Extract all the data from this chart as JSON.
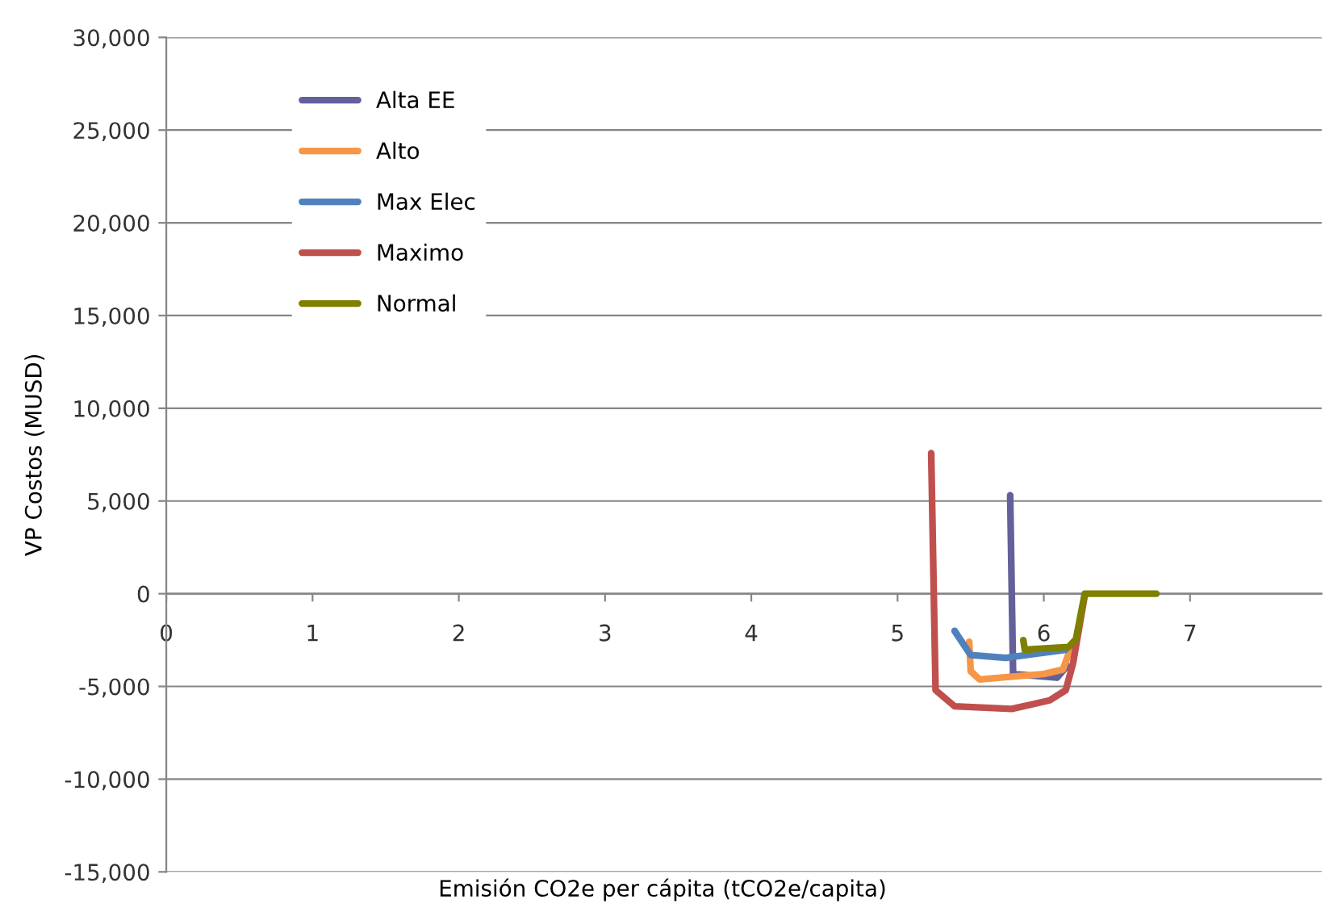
{
  "chart_data": {
    "type": "line",
    "xlabel": "Emisión CO2e per cápita (tCO2e/capita)",
    "ylabel": "VP Costos (MUSD)",
    "xlim": [
      0,
      7.9
    ],
    "xticks": [
      0,
      1,
      2,
      3,
      4,
      5,
      6,
      7
    ],
    "ylim": [
      -15000,
      30000
    ],
    "yticks": [
      {
        "value": -15000,
        "label": "-15,000"
      },
      {
        "value": -10000,
        "label": "-10,000"
      },
      {
        "value": -5000,
        "label": "-5,000"
      },
      {
        "value": 0,
        "label": "0"
      },
      {
        "value": 5000,
        "label": "5,000"
      },
      {
        "value": 10000,
        "label": "10,000"
      },
      {
        "value": 15000,
        "label": "15,000"
      },
      {
        "value": 20000,
        "label": "20,000"
      },
      {
        "value": 25000,
        "label": "25,000"
      },
      {
        "value": 30000,
        "label": "30,000"
      }
    ],
    "grid": "y",
    "legend": "top left",
    "marker": "none",
    "line_style": "solid",
    "series": [
      {
        "name": "Alta EE",
        "color": "#64609c",
        "x": [
          5.77,
          5.79,
          6.09,
          6.16
        ],
        "values": [
          5310,
          -4330,
          -4530,
          -3890
        ]
      },
      {
        "name": "Alto",
        "color": "#f79646",
        "x": [
          5.49,
          5.5,
          5.56,
          6.0,
          6.13,
          6.18
        ],
        "values": [
          -2590,
          -4180,
          -4620,
          -4330,
          -4090,
          -3020
        ]
      },
      {
        "name": "Max Elec",
        "color": "#4f81bd",
        "x": [
          5.39,
          5.5,
          5.74,
          6.15
        ],
        "values": [
          -2000,
          -3310,
          -3460,
          -3020
        ]
      },
      {
        "name": "Maximo",
        "color": "#c0504d",
        "x": [
          5.23,
          5.26,
          5.39,
          5.78,
          6.04,
          6.15,
          6.2,
          6.28
        ],
        "values": [
          7580,
          -5200,
          -6070,
          -6210,
          -5750,
          -5200,
          -3750,
          -90
        ]
      },
      {
        "name": "Normal",
        "color": "#7f7f00",
        "x": [
          5.86,
          5.87,
          6.17,
          6.22,
          6.28,
          6.77
        ],
        "values": [
          -2500,
          -3020,
          -2870,
          -2440,
          0,
          0
        ]
      }
    ]
  }
}
